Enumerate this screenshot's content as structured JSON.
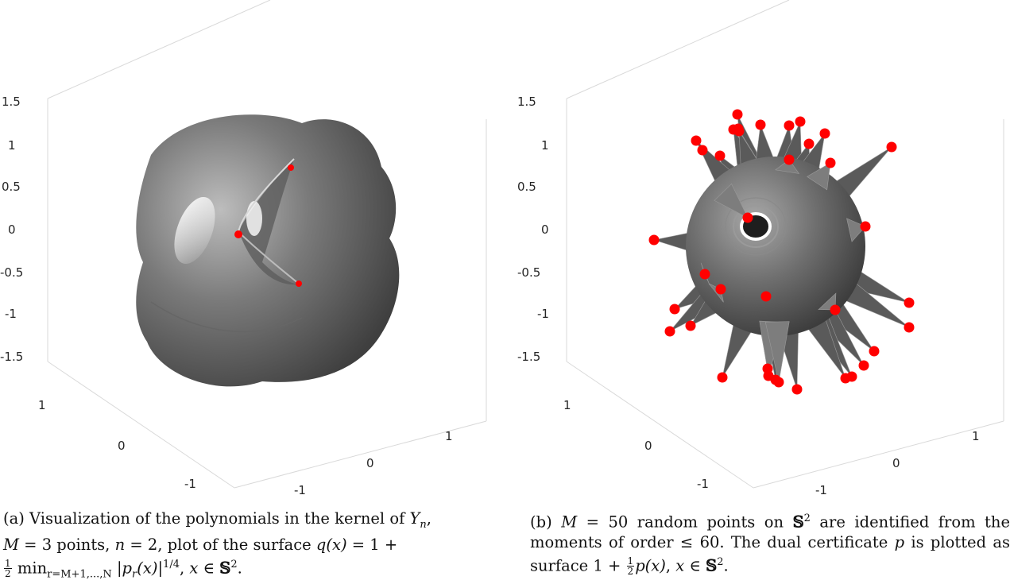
{
  "figure": {
    "panels": [
      {
        "id": "a",
        "caption_label": "(a)",
        "caption_text": "Visualization of the polynomials in the kernel of Yn, M = 3 points, n = 2, plot of the surface q(x) = 1 + ½ min r=M+1,...,N |pr(x)|^1/4, x ∈ S².",
        "caption_parts": {
          "p1": "Visualization of the polynomials in the kernel of ",
          "p2": ",",
          "p3": " = 3 points, ",
          "p4": " = 2, plot of the surface ",
          "p5": " = 1 +",
          "sym_Y": "Y",
          "sym_n_sub": "n",
          "sym_M": "M",
          "sym_n": "n",
          "sym_q": "q(x)",
          "frac_num": "1",
          "frac_den": "2",
          "min": "min",
          "min_sub": "r=M+1,...,N",
          "abs_open": "|",
          "p_r": "p",
          "p_r_sub": "r",
          "arg": "(x)",
          "abs_close": "|",
          "exp": "1/4",
          "tail1": ", ",
          "x": "x",
          "in": " ∈ ",
          "S": "𝕊",
          "S_sup": "2",
          "end": "."
        },
        "z_ticks": [
          "1.5",
          "1",
          "0.5",
          "0",
          "-0.5",
          "-1",
          "-1.5"
        ],
        "y_ticks": [
          "1",
          "0",
          "-1"
        ],
        "x_ticks": [
          "-1",
          "0",
          "1"
        ]
      },
      {
        "id": "b",
        "caption_label": "(b)",
        "caption_text": "M = 50 random points on S² are identified from the moments of order ≤ 60. The dual certificate p is plotted as surface 1 + ½p(x), x ∈ S².",
        "caption_parts": {
          "M": "M",
          "p1": " = 50 random points on ",
          "S": "𝕊",
          "S_sup": "2",
          "p2": " are identified from the moments of order ≤ 60. The dual certificate ",
          "p": "p",
          "p3": " is plotted as surface 1 + ",
          "frac_num": "1",
          "frac_den": "2",
          "px": "p(x)",
          "p4": ", ",
          "x": "x",
          "in": " ∈ ",
          "S2": "𝕊",
          "S2_sup": "2",
          "end": "."
        },
        "z_ticks": [
          "1.5",
          "1",
          "0.5",
          "0",
          "-0.5",
          "-1",
          "-1.5"
        ],
        "y_ticks": [
          "1",
          "0",
          "-1"
        ],
        "x_ticks": [
          "-1",
          "0",
          "1"
        ]
      }
    ],
    "colors": {
      "surface_light": "#bdbdbd",
      "surface_mid": "#7a7a7a",
      "surface_dark": "#3f3f3f",
      "points": "#ff0000",
      "box": "#d9d9d9"
    }
  }
}
